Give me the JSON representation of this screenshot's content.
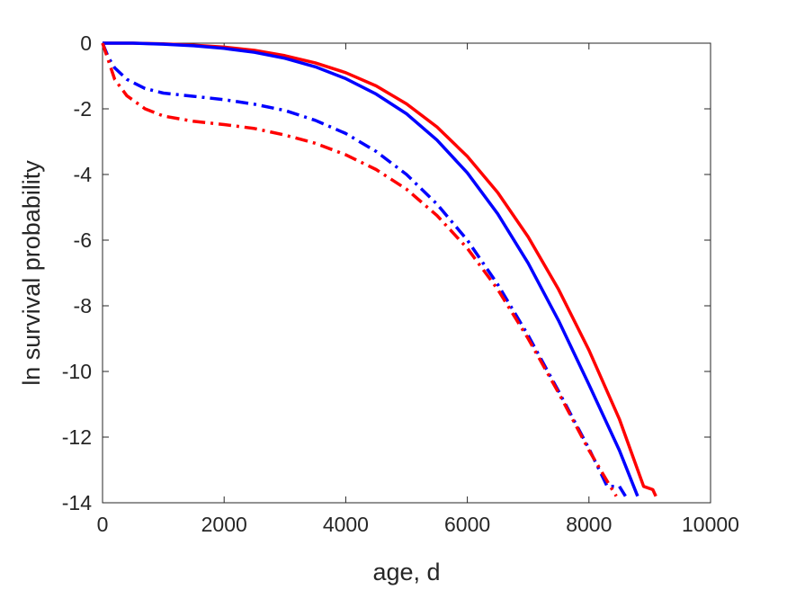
{
  "chart_data": {
    "type": "line",
    "xlabel": "age, d",
    "ylabel": "ln survival probability",
    "xlim": [
      0,
      10000
    ],
    "ylim": [
      -14,
      0
    ],
    "xticks": [
      "0",
      "2000",
      "4000",
      "6000",
      "8000",
      "10000"
    ],
    "yticks": [
      "0",
      "-2",
      "-4",
      "-6",
      "-8",
      "-10",
      "-12",
      "-14"
    ],
    "grid": false,
    "series": [
      {
        "color": "#ff0000",
        "style": "solid",
        "points": [
          [
            0,
            0
          ],
          [
            500,
            0
          ],
          [
            1000,
            -0.02
          ],
          [
            1500,
            -0.06
          ],
          [
            2000,
            -0.12
          ],
          [
            2500,
            -0.22
          ],
          [
            3000,
            -0.38
          ],
          [
            3500,
            -0.6
          ],
          [
            4000,
            -0.9
          ],
          [
            4500,
            -1.3
          ],
          [
            5000,
            -1.85
          ],
          [
            5500,
            -2.55
          ],
          [
            6000,
            -3.45
          ],
          [
            6500,
            -4.55
          ],
          [
            7000,
            -5.9
          ],
          [
            7500,
            -7.5
          ],
          [
            8000,
            -9.35
          ],
          [
            8500,
            -11.45
          ],
          [
            8900,
            -13.5
          ],
          [
            9050,
            -13.6
          ],
          [
            9100,
            -13.8
          ]
        ]
      },
      {
        "color": "#0000ff",
        "style": "solid",
        "points": [
          [
            0,
            0
          ],
          [
            500,
            0
          ],
          [
            1000,
            -0.03
          ],
          [
            1500,
            -0.08
          ],
          [
            2000,
            -0.16
          ],
          [
            2500,
            -0.28
          ],
          [
            3000,
            -0.46
          ],
          [
            3500,
            -0.72
          ],
          [
            4000,
            -1.08
          ],
          [
            4500,
            -1.55
          ],
          [
            5000,
            -2.15
          ],
          [
            5500,
            -2.95
          ],
          [
            6000,
            -3.95
          ],
          [
            6500,
            -5.2
          ],
          [
            7000,
            -6.7
          ],
          [
            7500,
            -8.45
          ],
          [
            8000,
            -10.4
          ],
          [
            8500,
            -12.4
          ],
          [
            8800,
            -13.8
          ]
        ]
      },
      {
        "color": "#0000ff",
        "style": "dashdot",
        "points": [
          [
            0,
            0
          ],
          [
            100,
            -0.45
          ],
          [
            200,
            -0.75
          ],
          [
            400,
            -1.1
          ],
          [
            700,
            -1.38
          ],
          [
            1000,
            -1.52
          ],
          [
            1500,
            -1.62
          ],
          [
            2000,
            -1.72
          ],
          [
            2500,
            -1.86
          ],
          [
            3000,
            -2.05
          ],
          [
            3500,
            -2.35
          ],
          [
            4000,
            -2.75
          ],
          [
            4500,
            -3.3
          ],
          [
            5000,
            -4.0
          ],
          [
            5500,
            -4.9
          ],
          [
            6000,
            -6.0
          ],
          [
            6500,
            -7.35
          ],
          [
            7000,
            -8.9
          ],
          [
            7500,
            -10.6
          ],
          [
            8000,
            -12.35
          ],
          [
            8300,
            -13.5
          ],
          [
            8500,
            -13.5
          ],
          [
            8600,
            -13.8
          ]
        ]
      },
      {
        "color": "#ff0000",
        "style": "dashdot",
        "points": [
          [
            0,
            0
          ],
          [
            100,
            -0.55
          ],
          [
            200,
            -1.1
          ],
          [
            400,
            -1.6
          ],
          [
            700,
            -2.0
          ],
          [
            1000,
            -2.22
          ],
          [
            1500,
            -2.38
          ],
          [
            2000,
            -2.48
          ],
          [
            2500,
            -2.6
          ],
          [
            3000,
            -2.8
          ],
          [
            3500,
            -3.05
          ],
          [
            4000,
            -3.4
          ],
          [
            4500,
            -3.85
          ],
          [
            5000,
            -4.45
          ],
          [
            5500,
            -5.25
          ],
          [
            6000,
            -6.25
          ],
          [
            6500,
            -7.5
          ],
          [
            7000,
            -9.0
          ],
          [
            7500,
            -10.65
          ],
          [
            8000,
            -12.4
          ],
          [
            8350,
            -13.5
          ],
          [
            8450,
            -13.8
          ]
        ]
      }
    ]
  }
}
